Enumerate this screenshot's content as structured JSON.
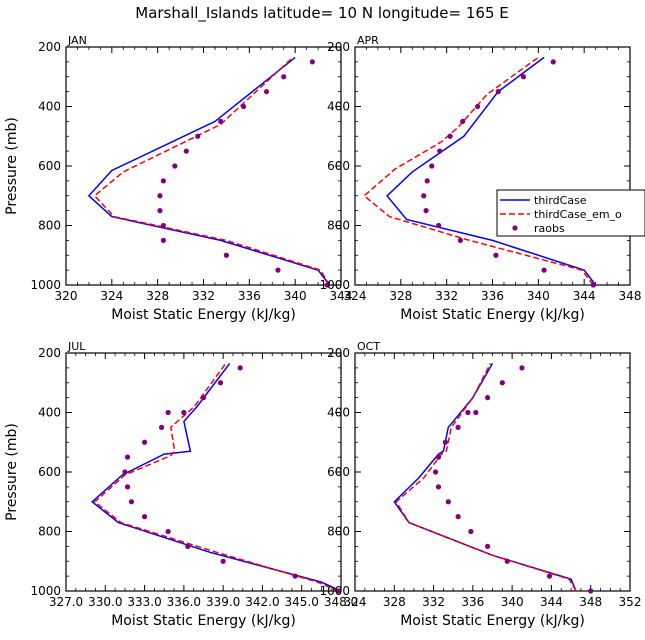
{
  "figure": {
    "title": "Marshall_Islands  latitude= 10 N longitude= 165 E"
  },
  "chart_data": [
    {
      "type": "line",
      "panel_label": "JAN",
      "xlabel": "Moist Static Energy (kJ/kg)",
      "ylabel": "Pressure (mb)",
      "xlim": [
        320,
        344
      ],
      "ylim": [
        1000,
        200
      ],
      "xticks": [
        320,
        324,
        328,
        332,
        336,
        340,
        344
      ],
      "xtick_labels": [
        "320",
        "324",
        "328",
        "332",
        "336",
        "340",
        "344"
      ],
      "yticks": [
        200,
        400,
        600,
        800,
        1000
      ],
      "ytick_labels": [
        "200",
        "400",
        "600",
        "800",
        "1000"
      ],
      "series": [
        {
          "name": "thirdCase",
          "style": "line",
          "color": "#0000ff",
          "x": [
            343.0,
            342.0,
            333.5,
            324.0,
            322.0,
            324.0,
            333.0,
            340.0
          ],
          "y": [
            1000,
            950,
            850,
            770,
            700,
            615,
            450,
            235
          ]
        },
        {
          "name": "thirdCase_em_o",
          "style": "dashed",
          "color": "#ff0000",
          "x": [
            343.0,
            342.2,
            334.0,
            324.2,
            322.5,
            325.0,
            333.5,
            339.8
          ],
          "y": [
            1000,
            950,
            850,
            770,
            700,
            620,
            460,
            235
          ]
        },
        {
          "name": "raobs",
          "style": "dots",
          "color": "#800080",
          "x": [
            342.8,
            338.5,
            334.0,
            328.5,
            328.5,
            328.2,
            328.2,
            328.5,
            329.5,
            330.5,
            331.5,
            333.5,
            335.5,
            337.5,
            339.0,
            341.5
          ],
          "y": [
            1000,
            950,
            900,
            850,
            800,
            750,
            700,
            650,
            600,
            550,
            500,
            450,
            400,
            350,
            300,
            250
          ]
        }
      ]
    },
    {
      "type": "line",
      "panel_label": "APR",
      "xlabel": "Moist Static Energy (kJ/kg)",
      "ylabel": "",
      "xlim": [
        324,
        348
      ],
      "ylim": [
        1000,
        200
      ],
      "xticks": [
        324,
        328,
        332,
        336,
        340,
        344,
        348
      ],
      "xtick_labels": [
        "324",
        "328",
        "332",
        "336",
        "340",
        "344",
        "348"
      ],
      "yticks": [
        200,
        400,
        600,
        800,
        1000
      ],
      "ytick_labels": [
        "200",
        "400",
        "600",
        "800",
        "1000"
      ],
      "legend": {
        "placement": "right",
        "entries": [
          "thirdCase",
          "thirdCase_em_o",
          "raobs"
        ]
      },
      "series": [
        {
          "name": "thirdCase",
          "style": "line",
          "color": "#0000ff",
          "x": [
            345.0,
            344.0,
            336.0,
            328.5,
            326.8,
            329.0,
            333.5,
            334.5,
            336.5,
            340.5
          ],
          "y": [
            1000,
            950,
            850,
            780,
            700,
            620,
            500,
            450,
            350,
            235
          ]
        },
        {
          "name": "thirdCase_em_o",
          "style": "dashed",
          "color": "#ff0000",
          "x": [
            344.8,
            343.8,
            334.0,
            327.0,
            324.8,
            327.5,
            331.5,
            333.0,
            335.5,
            340.0
          ],
          "y": [
            1000,
            950,
            850,
            770,
            700,
            610,
            520,
            470,
            360,
            235
          ]
        },
        {
          "name": "raobs",
          "style": "dots",
          "color": "#800080",
          "x": [
            344.8,
            340.5,
            336.3,
            333.2,
            331.3,
            330.2,
            330.0,
            330.3,
            330.7,
            331.4,
            332.3,
            333.4,
            334.7,
            336.5,
            338.7,
            341.3
          ],
          "y": [
            1000,
            950,
            900,
            850,
            800,
            750,
            700,
            650,
            600,
            550,
            500,
            450,
            400,
            350,
            300,
            250
          ]
        }
      ]
    },
    {
      "type": "line",
      "panel_label": "JUL",
      "xlabel": "Moist Static Energy (kJ/kg)",
      "ylabel": "Pressure (mb)",
      "xlim": [
        327.0,
        348.0
      ],
      "ylim": [
        1000,
        200
      ],
      "xticks": [
        327.0,
        330.0,
        333.0,
        336.0,
        339.0,
        342.0,
        345.0,
        348.0
      ],
      "xtick_labels": [
        "327.0",
        "330.0",
        "333.0",
        "336.0",
        "339.0",
        "342.0",
        "345.0",
        "348.0"
      ],
      "yticks": [
        200,
        400,
        600,
        800,
        1000
      ],
      "ytick_labels": [
        "200",
        "400",
        "600",
        "800",
        "1000"
      ],
      "series": [
        {
          "name": "thirdCase",
          "style": "line",
          "color": "#0000ff",
          "x": [
            348.0,
            346.5,
            338.0,
            331.0,
            329.0,
            331.3,
            334.5,
            336.5,
            336.0,
            337.0,
            339.5
          ],
          "y": [
            1000,
            970,
            870,
            770,
            700,
            610,
            540,
            530,
            430,
            380,
            235
          ]
        },
        {
          "name": "thirdCase_em_o",
          "style": "dashed",
          "color": "#ff0000",
          "x": [
            347.8,
            346.2,
            338.5,
            331.2,
            329.2,
            331.5,
            335.0,
            335.3,
            335.0,
            336.8,
            339.2
          ],
          "y": [
            1000,
            970,
            870,
            770,
            700,
            610,
            545,
            530,
            450,
            380,
            235
          ]
        },
        {
          "name": "raobs",
          "style": "dots",
          "color": "#800080",
          "x": [
            347.8,
            344.5,
            339.0,
            336.3,
            334.8,
            333.0,
            332.0,
            331.7,
            331.5,
            331.7,
            333.0,
            334.3,
            334.8,
            336.0,
            337.5,
            338.8,
            340.3
          ],
          "y": [
            1000,
            950,
            900,
            850,
            800,
            750,
            700,
            650,
            600,
            550,
            500,
            450,
            400,
            400,
            350,
            300,
            250
          ]
        }
      ]
    },
    {
      "type": "line",
      "panel_label": "OCT",
      "xlabel": "Moist Static Energy (kJ/kg)",
      "ylabel": "",
      "xlim": [
        324,
        352
      ],
      "ylim": [
        1000,
        200
      ],
      "xticks": [
        324,
        328,
        332,
        336,
        340,
        344,
        348,
        352
      ],
      "xtick_labels": [
        "324",
        "328",
        "332",
        "336",
        "340",
        "344",
        "348",
        "352"
      ],
      "yticks": [
        200,
        400,
        600,
        800,
        1000
      ],
      "ytick_labels": [
        "200",
        "400",
        "600",
        "800",
        "1000"
      ],
      "series": [
        {
          "name": "thirdCase",
          "style": "line",
          "color": "#0000ff",
          "x": [
            346.5,
            346.0,
            338.0,
            329.5,
            328.0,
            330.5,
            332.5,
            333.0,
            333.5,
            336.0,
            338.0
          ],
          "y": [
            1000,
            960,
            880,
            770,
            700,
            620,
            540,
            530,
            450,
            350,
            235
          ]
        },
        {
          "name": "thirdCase_em_o",
          "style": "dashed",
          "color": "#ff0000",
          "x": [
            346.5,
            345.8,
            338.0,
            329.5,
            328.2,
            331.0,
            332.8,
            333.3,
            333.8,
            336.0,
            337.8
          ],
          "y": [
            1000,
            960,
            880,
            770,
            700,
            620,
            540,
            530,
            450,
            350,
            235
          ]
        },
        {
          "name": "raobs",
          "style": "dots",
          "color": "#800080",
          "x": [
            348.0,
            343.8,
            339.5,
            337.5,
            335.8,
            334.5,
            333.5,
            332.5,
            332.2,
            332.5,
            333.2,
            334.5,
            335.5,
            336.3,
            337.5,
            339.0,
            341.0
          ],
          "y": [
            1000,
            950,
            900,
            850,
            800,
            750,
            700,
            650,
            600,
            550,
            500,
            450,
            400,
            400,
            350,
            300,
            250
          ]
        }
      ]
    }
  ]
}
